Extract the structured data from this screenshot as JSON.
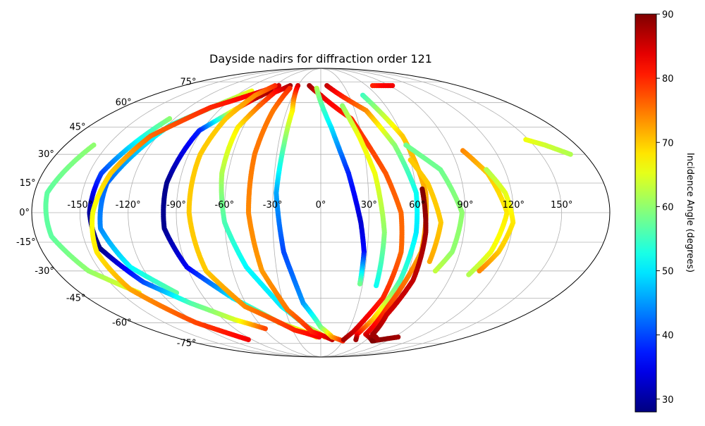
{
  "chart_data": {
    "type": "scatter",
    "projection": "mollweide",
    "title": "Dayside nadirs for diffraction order 121",
    "grid": true,
    "lon_ticks": [
      -150,
      -120,
      -90,
      -60,
      -30,
      0,
      30,
      60,
      90,
      120,
      150
    ],
    "lon_tick_labels": [
      "-150°",
      "-120°",
      "-90°",
      "-60°",
      "-30°",
      "0°",
      "30°",
      "60°",
      "90°",
      "120°",
      "150°"
    ],
    "lat_ticks": [
      75,
      60,
      45,
      30,
      15,
      0,
      -15,
      -30,
      -45,
      -60,
      -75
    ],
    "lat_tick_labels": [
      "75°",
      "60°",
      "45°",
      "30°",
      "15°",
      "0°",
      "-15°",
      "-30°",
      "-45°",
      "-60°",
      "-75°"
    ],
    "colorbar": {
      "label": "Incidence Angle (degrees)",
      "colormap": "jet",
      "range": [
        28,
        90
      ],
      "ticks": [
        30,
        40,
        50,
        60,
        70,
        80,
        90
      ],
      "tick_labels": [
        "30",
        "40",
        "50",
        "60",
        "70",
        "80",
        "90"
      ],
      "placement": "right"
    },
    "series": [
      {
        "points": [
          [
            -160,
            35,
            60
          ],
          [
            -172,
            10,
            57
          ],
          [
            -170,
            -12,
            57
          ],
          [
            -158,
            -30,
            60
          ],
          [
            -136,
            -42,
            66
          ]
        ]
      },
      {
        "points": [
          [
            -80,
            68,
            66
          ],
          [
            -118,
            46,
            53
          ],
          [
            -136,
            15,
            42
          ],
          [
            -138,
            -8,
            44
          ],
          [
            -128,
            -28,
            51
          ],
          [
            -108,
            -42,
            57
          ]
        ]
      },
      {
        "points": [
          [
            -124,
            50,
            60
          ],
          [
            -142,
            20,
            40
          ],
          [
            -144,
            0,
            30
          ],
          [
            -142,
            -18,
            28
          ],
          [
            -126,
            -36,
            40
          ],
          [
            -104,
            -48,
            56
          ],
          [
            -80,
            -58,
            64
          ],
          [
            -58,
            -64,
            78
          ]
        ]
      },
      {
        "points": [
          [
            -55,
            72,
            85
          ],
          [
            -100,
            57,
            80
          ],
          [
            -125,
            40,
            76
          ],
          [
            -136,
            20,
            70
          ],
          [
            -142,
            0,
            66
          ],
          [
            -145,
            -20,
            68
          ],
          [
            -140,
            -40,
            72
          ],
          [
            -120,
            -60,
            78
          ],
          [
            -95,
            -72,
            83
          ]
        ]
      },
      {
        "points": [
          [
            -58,
            68,
            88
          ],
          [
            -68,
            62,
            86
          ],
          [
            -92,
            43,
            38
          ],
          [
            -98,
            15,
            29
          ],
          [
            -98,
            -8,
            29
          ],
          [
            -90,
            -28,
            35
          ],
          [
            -68,
            -45,
            50
          ],
          [
            -40,
            -60,
            62
          ],
          [
            -5,
            -70,
            70
          ]
        ]
      },
      {
        "points": [
          [
            -60,
            72,
            80
          ],
          [
            -70,
            65,
            74
          ],
          [
            -78,
            50,
            70
          ],
          [
            -82,
            30,
            70
          ],
          [
            -82,
            0,
            70
          ],
          [
            -78,
            -30,
            70
          ],
          [
            -62,
            -50,
            74
          ],
          [
            -28,
            -65,
            80
          ],
          [
            -2,
            -70,
            83
          ]
        ]
      },
      {
        "points": [
          [
            -40,
            72,
            88
          ],
          [
            -52,
            67,
            82
          ],
          [
            -64,
            45,
            68
          ],
          [
            -64,
            20,
            62
          ],
          [
            -60,
            -5,
            56
          ],
          [
            -50,
            -28,
            51
          ],
          [
            -32,
            -50,
            50
          ],
          [
            -15,
            -62,
            58
          ],
          [
            5,
            -70,
            68
          ]
        ]
      },
      {
        "points": [
          [
            -38,
            70,
            80
          ],
          [
            -42,
            55,
            75
          ],
          [
            -45,
            30,
            75
          ],
          [
            -45,
            0,
            74
          ],
          [
            -40,
            -30,
            73
          ],
          [
            -28,
            -52,
            75
          ],
          [
            -10,
            -66,
            80
          ],
          [
            15,
            -72,
            86
          ]
        ]
      },
      {
        "points": [
          [
            -30,
            72,
            85
          ],
          [
            -25,
            55,
            68
          ],
          [
            -26,
            35,
            58
          ],
          [
            -28,
            10,
            46
          ],
          [
            -24,
            -20,
            40
          ],
          [
            -14,
            -48,
            45
          ],
          [
            0,
            -63,
            58
          ],
          [
            14,
            -70,
            72
          ],
          [
            30,
            -73,
            80
          ]
        ]
      },
      {
        "points": [
          [
            -15,
            72,
            88
          ],
          [
            0,
            65,
            84
          ],
          [
            25,
            50,
            80
          ],
          [
            42,
            20,
            77
          ],
          [
            50,
            0,
            76
          ],
          [
            52,
            -20,
            76
          ],
          [
            48,
            -45,
            80
          ],
          [
            36,
            -66,
            85
          ],
          [
            30,
            -72,
            88
          ]
        ]
      },
      {
        "points": [
          [
            -5,
            70,
            62
          ],
          [
            8,
            45,
            50
          ],
          [
            18,
            20,
            38
          ],
          [
            25,
            -5,
            33
          ],
          [
            28,
            -20,
            36
          ],
          [
            28,
            -37,
            58
          ]
        ]
      },
      {
        "points": [
          [
            20,
            58,
            60
          ],
          [
            28,
            40,
            66
          ],
          [
            35,
            20,
            66
          ],
          [
            40,
            -10,
            60
          ],
          [
            40,
            -38,
            52
          ]
        ]
      },
      {
        "points": [
          [
            8,
            72,
            86
          ],
          [
            40,
            55,
            74
          ],
          [
            52,
            35,
            60
          ],
          [
            60,
            10,
            52
          ],
          [
            60,
            -10,
            50
          ],
          [
            56,
            -35,
            55
          ],
          [
            48,
            -58,
            70
          ],
          [
            42,
            -68,
            82
          ],
          [
            46,
            -72,
            88
          ]
        ]
      },
      {
        "points": [
          [
            45,
            65,
            55
          ],
          [
            60,
            40,
            70
          ],
          [
            66,
            10,
            72
          ],
          [
            65,
            -20,
            72
          ],
          [
            55,
            -50,
            78
          ],
          [
            52,
            -68,
            84
          ],
          [
            70,
            -73,
            90
          ],
          [
            95,
            -70,
            88
          ]
        ]
      },
      {
        "points": [
          [
            64,
            12,
            90
          ],
          [
            66,
            -10,
            88
          ],
          [
            65,
            -35,
            86
          ],
          [
            58,
            -55,
            85
          ],
          [
            60,
            -68,
            88
          ],
          [
            75,
            -72,
            88
          ]
        ]
      },
      {
        "points": [
          [
            60,
            35,
            58
          ],
          [
            78,
            22,
            58
          ],
          [
            88,
            0,
            60
          ],
          [
            85,
            -20,
            60
          ],
          [
            78,
            -30,
            63
          ]
        ]
      },
      {
        "points": [
          [
            60,
            27,
            70
          ],
          [
            68,
            15,
            70
          ],
          [
            75,
            -5,
            70
          ],
          [
            72,
            -25,
            72
          ]
        ]
      },
      {
        "points": [
          [
            98,
            32,
            74
          ],
          [
            108,
            20,
            70
          ],
          [
            116,
            0,
            68
          ],
          [
            110,
            -20,
            66
          ],
          [
            102,
            -32,
            62
          ]
        ]
      },
      {
        "points": [
          [
            108,
            22,
            62
          ],
          [
            116,
            10,
            65
          ],
          [
            120,
            -5,
            68
          ],
          [
            115,
            -20,
            70
          ],
          [
            108,
            -30,
            74
          ]
        ]
      },
      {
        "points": [
          [
            68,
            72,
            80
          ],
          [
            80,
            72,
            82
          ],
          [
            94,
            72,
            83
          ]
        ]
      },
      {
        "points": [
          [
            148,
            38,
            66
          ],
          [
            158,
            35,
            64
          ],
          [
            170,
            30,
            62
          ]
        ]
      }
    ]
  }
}
